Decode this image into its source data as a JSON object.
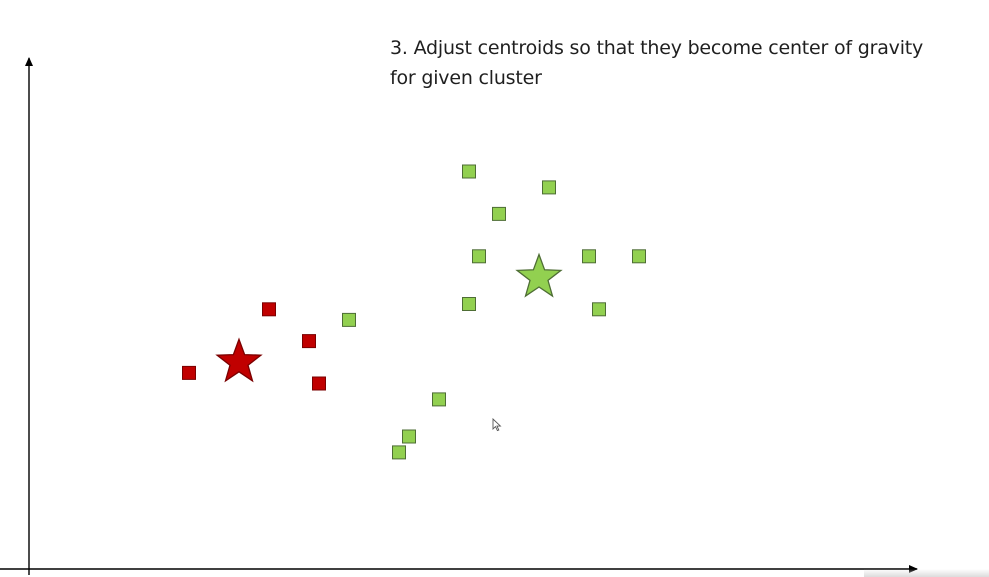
{
  "slide": {
    "title_line1": "3. Adjust centroids so that they become center of gravity",
    "title_line2": "for given cluster"
  },
  "chart_data": {
    "type": "scatter",
    "title": "3. Adjust centroids so that they become center of gravity for given cluster",
    "xlabel": "",
    "ylabel": "",
    "xlim": [
      0,
      100
    ],
    "ylim": [
      0,
      100
    ],
    "grid": false,
    "ticks": false,
    "series": [
      {
        "cluster": "red",
        "marker": "square",
        "color": "#c00000",
        "points": [
          [
            16,
            37
          ],
          [
            24,
            49
          ],
          [
            28,
            43
          ],
          [
            29,
            35
          ]
        ]
      },
      {
        "cluster": "green",
        "marker": "square",
        "color": "#92d050",
        "points": [
          [
            32,
            47
          ],
          [
            44,
            75
          ],
          [
            52,
            72
          ],
          [
            47,
            67
          ],
          [
            45,
            59
          ],
          [
            44,
            50
          ],
          [
            56,
            59
          ],
          [
            61,
            59
          ],
          [
            57,
            49
          ],
          [
            41,
            32
          ],
          [
            38,
            25
          ],
          [
            37,
            22
          ]
        ]
      }
    ],
    "centroids": [
      {
        "cluster": "red",
        "marker": "star",
        "color": "#c00000",
        "x": 21,
        "y": 39
      },
      {
        "cluster": "green",
        "marker": "star",
        "color": "#92d050",
        "x": 51,
        "y": 55
      }
    ]
  }
}
